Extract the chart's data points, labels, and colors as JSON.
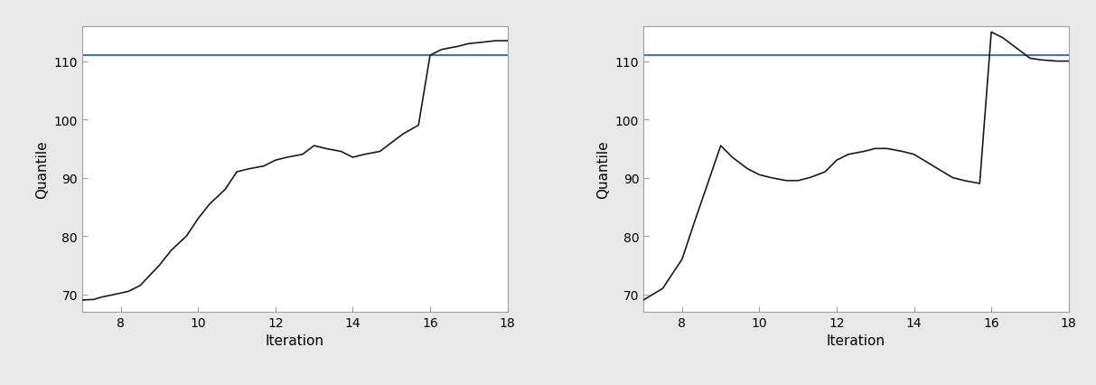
{
  "left": {
    "x": [
      7,
      7.3,
      7.5,
      8,
      8.2,
      8.5,
      9,
      9.3,
      9.7,
      10,
      10.3,
      10.7,
      11,
      11.3,
      11.7,
      12,
      12.3,
      12.7,
      13,
      13.3,
      13.7,
      14,
      14.3,
      14.7,
      15,
      15.3,
      15.7,
      16,
      16.3,
      16.7,
      17,
      17.3,
      17.7,
      18
    ],
    "y": [
      69,
      69.1,
      69.5,
      70.2,
      70.5,
      71.5,
      75,
      77.5,
      80,
      83,
      85.5,
      88,
      91,
      91.5,
      92,
      93,
      93.5,
      94,
      95.5,
      95,
      94.5,
      93.5,
      94,
      94.5,
      96,
      97.5,
      99,
      111,
      112,
      112.5,
      113,
      113.2,
      113.5,
      113.5
    ],
    "hline": 111.0,
    "xlabel": "Iteration",
    "ylabel": "Quantile",
    "xlim": [
      7,
      18
    ],
    "ylim": [
      67,
      116
    ],
    "xticks": [
      8,
      10,
      12,
      14,
      16,
      18
    ],
    "yticks": [
      70,
      80,
      90,
      100,
      110
    ]
  },
  "right": {
    "x": [
      7,
      7.5,
      8,
      8.3,
      9,
      9.3,
      9.7,
      10,
      10.3,
      10.7,
      11,
      11.3,
      11.7,
      12,
      12.3,
      12.7,
      13,
      13.3,
      13.7,
      14,
      14.5,
      15,
      15.3,
      15.7,
      16,
      16.3,
      16.7,
      17,
      17.3,
      17.7,
      18
    ],
    "y": [
      69,
      71,
      76,
      82,
      95.5,
      93.5,
      91.5,
      90.5,
      90,
      89.5,
      89.5,
      90,
      91,
      93,
      94,
      94.5,
      95,
      95,
      94.5,
      94,
      92,
      90,
      89.5,
      89,
      115,
      114,
      112,
      110.5,
      110.2,
      110,
      110
    ],
    "hline": 111.0,
    "xlabel": "Iteration",
    "ylabel": "Quantile",
    "xlim": [
      7,
      18
    ],
    "ylim": [
      67,
      116
    ],
    "xticks": [
      8,
      10,
      12,
      14,
      16,
      18
    ],
    "yticks": [
      70,
      80,
      90,
      100,
      110
    ]
  },
  "line_color": "#1a1a1a",
  "hline_color": "#4472C4",
  "bg_color": "#ffffff",
  "spine_color": "#a0a0a0",
  "fig_bg": "#e8e8e8",
  "tick_label_size": 10,
  "axis_label_size": 11
}
